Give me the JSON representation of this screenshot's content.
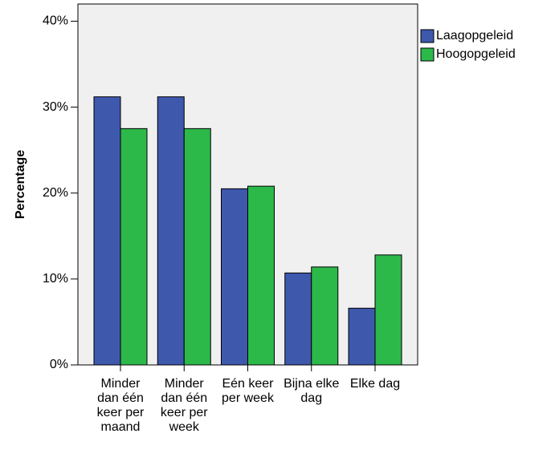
{
  "chart_data": {
    "type": "bar",
    "y_label": "Percentage",
    "categories": [
      "Minder dan één keer per maand",
      "Minder dan één keer per week",
      "Eén keer per week",
      "Bijna elke dag",
      "Elke dag"
    ],
    "series": [
      {
        "name": "Laagopgeleid",
        "color": "#3e58ac",
        "values": [
          31.2,
          31.2,
          20.5,
          10.7,
          6.6
        ]
      },
      {
        "name": "Hoogopgeleid",
        "color": "#2db84a",
        "values": [
          27.5,
          27.5,
          20.8,
          11.4,
          12.8
        ]
      }
    ],
    "ylim": [
      0,
      42
    ],
    "yticks": [
      {
        "value": 0,
        "label": "0%"
      },
      {
        "value": 10,
        "label": "10%"
      },
      {
        "value": 20,
        "label": "20%"
      },
      {
        "value": 30,
        "label": "30%"
      },
      {
        "value": 40,
        "label": "40%"
      }
    ],
    "legend": "right"
  }
}
